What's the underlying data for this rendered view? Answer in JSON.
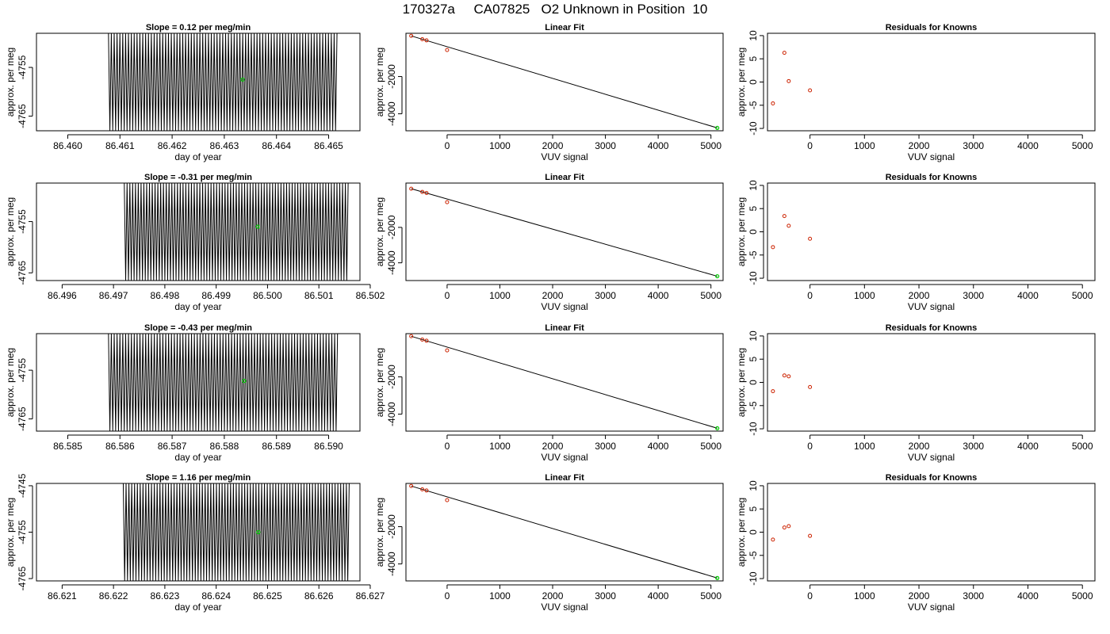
{
  "title": "170327a     CA07825   O2 Unknown in Position  10",
  "colors": {
    "trace": "#000000",
    "fit_line": "#000000",
    "known_points": "#cc2200",
    "unknown_point": "#00cc00",
    "axes": "#000000"
  },
  "chart_data": [
    {
      "type": "line",
      "row": 1,
      "panel": "drift",
      "title": "Slope =  0.12  per meg/min",
      "xlabel": "day of year",
      "ylabel": "approx. per meg",
      "xlim": [
        86.4594,
        86.4656
      ],
      "ylim": [
        -4768,
        -4748
      ],
      "xticks": [
        86.46,
        86.461,
        86.462,
        86.463,
        86.464,
        86.465
      ],
      "xtick_labels": [
        "86.460",
        "86.461",
        "86.462",
        "86.463",
        "86.464",
        "86.465"
      ],
      "yticks": [
        -4755,
        -4765
      ],
      "ytick_labels": [
        "-4755",
        "-4765"
      ],
      "trace": {
        "x_start": 86.46078,
        "x_end": 86.46516,
        "y_low": -4768,
        "y_high": -4748,
        "segment_count": 160
      },
      "marker": {
        "x": 86.46335,
        "y": -4757.5,
        "label": "unknown"
      },
      "slope": 0.12
    },
    {
      "type": "scatter",
      "row": 1,
      "panel": "linear-fit",
      "title": "Linear Fit",
      "xlabel": "VUV signal",
      "ylabel": "approx. per meg",
      "xlim": [
        -780,
        5230
      ],
      "ylim": [
        -4910,
        320
      ],
      "xticks": [
        0,
        1000,
        2000,
        3000,
        4000,
        5000
      ],
      "xtick_labels": [
        "0",
        "1000",
        "2000",
        "3000",
        "4000",
        "5000"
      ],
      "yticks": [
        -2000,
        -4000
      ],
      "ytick_labels": [
        "-2000",
        "-4000"
      ],
      "knowns": {
        "x": [
          -680,
          -470,
          -390,
          0
        ],
        "y": [
          180,
          0,
          -60,
          -580
        ]
      },
      "unknown": {
        "x": 5120,
        "y": -4757
      },
      "fit": {
        "x": [
          -680,
          5120
        ],
        "y": [
          180,
          -4757
        ]
      }
    },
    {
      "type": "scatter",
      "row": 1,
      "panel": "residuals",
      "title": "Residuals for Knowns",
      "xlabel": "VUV signal",
      "ylabel": "approx. per meg",
      "xlim": [
        -780,
        5230
      ],
      "ylim": [
        -10.5,
        10.5
      ],
      "xticks": [
        0,
        1000,
        2000,
        3000,
        4000,
        5000
      ],
      "xtick_labels": [
        "0",
        "1000",
        "2000",
        "3000",
        "4000",
        "5000"
      ],
      "yticks": [
        10,
        5,
        0,
        -5,
        -10
      ],
      "ytick_labels": [
        "10",
        "5",
        "0",
        "-5",
        "-10"
      ],
      "knowns": {
        "x": [
          -680,
          -470,
          -390,
          0
        ],
        "y": [
          -4.6,
          6.3,
          0.2,
          -1.8
        ]
      }
    },
    {
      "type": "line",
      "row": 2,
      "panel": "drift",
      "title": "Slope =  -0.31  per meg/min",
      "xlabel": "day of year",
      "ylabel": "approx. per meg",
      "xlim": [
        86.4955,
        86.5018
      ],
      "ylim": [
        -4766.5,
        -4747.5
      ],
      "xticks": [
        86.496,
        86.497,
        86.498,
        86.499,
        86.5,
        86.501,
        86.502
      ],
      "xtick_labels": [
        "86.496",
        "86.497",
        "86.498",
        "86.499",
        "86.500",
        "86.501",
        "86.502"
      ],
      "yticks": [
        -4755,
        -4765
      ],
      "ytick_labels": [
        "-4755",
        "-4765"
      ],
      "trace": {
        "x_start": 86.49721,
        "x_end": 86.50157,
        "y_low": -4766.5,
        "y_high": -4747.5,
        "segment_count": 160
      },
      "marker": {
        "x": 86.49981,
        "y": -4756,
        "label": "unknown"
      },
      "slope": -0.31
    },
    {
      "type": "scatter",
      "row": 2,
      "panel": "linear-fit",
      "title": "Linear Fit",
      "xlabel": "VUV signal",
      "ylabel": "approx. per meg",
      "xlim": [
        -780,
        5230
      ],
      "ylim": [
        -5000,
        500
      ],
      "xticks": [
        0,
        1000,
        2000,
        3000,
        4000,
        5000
      ],
      "xtick_labels": [
        "0",
        "1000",
        "2000",
        "3000",
        "4000",
        "5000"
      ],
      "yticks": [
        -2000,
        -4000
      ],
      "ytick_labels": [
        "-2000",
        "-4000"
      ],
      "knowns": {
        "x": [
          -680,
          -470,
          -390,
          0
        ],
        "y": [
          180,
          0,
          -60,
          -580
        ]
      },
      "unknown": {
        "x": 5120,
        "y": -4756
      },
      "fit": {
        "x": [
          -680,
          5120
        ],
        "y": [
          180,
          -4756
        ]
      }
    },
    {
      "type": "scatter",
      "row": 2,
      "panel": "residuals",
      "title": "Residuals for Knowns",
      "xlabel": "VUV signal",
      "ylabel": "approx. per meg",
      "xlim": [
        -780,
        5230
      ],
      "ylim": [
        -10.5,
        10.5
      ],
      "xticks": [
        0,
        1000,
        2000,
        3000,
        4000,
        5000
      ],
      "xtick_labels": [
        "0",
        "1000",
        "2000",
        "3000",
        "4000",
        "5000"
      ],
      "yticks": [
        10,
        5,
        0,
        -5,
        -10
      ],
      "ytick_labels": [
        "10",
        "5",
        "0",
        "-5",
        "-10"
      ],
      "knowns": {
        "x": [
          -680,
          -470,
          -390,
          0
        ],
        "y": [
          -3.3,
          3.4,
          1.3,
          -1.5
        ]
      }
    },
    {
      "type": "line",
      "row": 3,
      "panel": "drift",
      "title": "Slope =  -0.43  per meg/min",
      "xlabel": "day of year",
      "ylabel": "approx. per meg",
      "xlim": [
        86.5844,
        86.5906
      ],
      "ylim": [
        -4767.5,
        -4747.5
      ],
      "xticks": [
        86.585,
        86.586,
        86.587,
        86.588,
        86.589,
        86.59
      ],
      "xtick_labels": [
        "86.585",
        "86.586",
        "86.587",
        "86.588",
        "86.589",
        "86.590"
      ],
      "yticks": [
        -4755,
        -4765
      ],
      "ytick_labels": [
        "-4755",
        "-4765"
      ],
      "trace": {
        "x_start": 86.58578,
        "x_end": 86.59017,
        "y_low": -4767.5,
        "y_high": -4747.5,
        "segment_count": 160
      },
      "marker": {
        "x": 86.58838,
        "y": -4757.2,
        "label": "unknown"
      },
      "slope": -0.43
    },
    {
      "type": "scatter",
      "row": 3,
      "panel": "linear-fit",
      "title": "Linear Fit",
      "xlabel": "VUV signal",
      "ylabel": "approx. per meg",
      "xlim": [
        -780,
        5230
      ],
      "ylim": [
        -4910,
        320
      ],
      "xticks": [
        0,
        1000,
        2000,
        3000,
        4000,
        5000
      ],
      "xtick_labels": [
        "0",
        "1000",
        "2000",
        "3000",
        "4000",
        "5000"
      ],
      "yticks": [
        -2000,
        -4000
      ],
      "ytick_labels": [
        "-2000",
        "-4000"
      ],
      "knowns": {
        "x": [
          -680,
          -470,
          -390,
          0
        ],
        "y": [
          180,
          0,
          -60,
          -580
        ]
      },
      "unknown": {
        "x": 5120,
        "y": -4757
      },
      "fit": {
        "x": [
          -680,
          5120
        ],
        "y": [
          180,
          -4757
        ]
      }
    },
    {
      "type": "scatter",
      "row": 3,
      "panel": "residuals",
      "title": "Residuals for Knowns",
      "xlabel": "VUV signal",
      "ylabel": "approx. per meg",
      "xlim": [
        -780,
        5230
      ],
      "ylim": [
        -10.5,
        10.5
      ],
      "xticks": [
        0,
        1000,
        2000,
        3000,
        4000,
        5000
      ],
      "xtick_labels": [
        "0",
        "1000",
        "2000",
        "3000",
        "4000",
        "5000"
      ],
      "yticks": [
        10,
        5,
        0,
        -5,
        -10
      ],
      "ytick_labels": [
        "10",
        "5",
        "0",
        "-5",
        "-10"
      ],
      "knowns": {
        "x": [
          -680,
          -470,
          -390,
          0
        ],
        "y": [
          -1.9,
          1.5,
          1.3,
          -1.0
        ]
      }
    },
    {
      "type": "line",
      "row": 4,
      "panel": "drift",
      "title": "Slope =  1.16  per meg/min",
      "xlabel": "day of year",
      "ylabel": "approx. per meg",
      "xlim": [
        86.6205,
        86.6268
      ],
      "ylim": [
        -4765.5,
        -4744.5
      ],
      "xticks": [
        86.621,
        86.622,
        86.623,
        86.624,
        86.625,
        86.626,
        86.627
      ],
      "xtick_labels": [
        "86.621",
        "86.622",
        "86.623",
        "86.624",
        "86.625",
        "86.626",
        "86.627"
      ],
      "yticks": [
        -4745,
        -4755,
        -4765
      ],
      "ytick_labels": [
        "-4745",
        "-4755",
        "-4765"
      ],
      "trace": {
        "x_start": 86.62219,
        "x_end": 86.62659,
        "y_low": -4765.5,
        "y_high": -4744.5,
        "segment_count": 160
      },
      "marker": {
        "x": 86.62482,
        "y": -4755,
        "label": "unknown"
      },
      "slope": 1.16
    },
    {
      "type": "scatter",
      "row": 4,
      "panel": "linear-fit",
      "title": "Linear Fit",
      "xlabel": "VUV signal",
      "ylabel": "approx. per meg",
      "xlim": [
        -780,
        5230
      ],
      "ylim": [
        -4910,
        320
      ],
      "xticks": [
        0,
        1000,
        2000,
        3000,
        4000,
        5000
      ],
      "xtick_labels": [
        "0",
        "1000",
        "2000",
        "3000",
        "4000",
        "5000"
      ],
      "yticks": [
        -2000,
        -4000
      ],
      "ytick_labels": [
        "-2000",
        "-4000"
      ],
      "knowns": {
        "x": [
          -680,
          -470,
          -390,
          0
        ],
        "y": [
          180,
          0,
          -60,
          -580
        ]
      },
      "unknown": {
        "x": 5120,
        "y": -4755
      },
      "fit": {
        "x": [
          -680,
          5120
        ],
        "y": [
          180,
          -4755
        ]
      }
    },
    {
      "type": "scatter",
      "row": 4,
      "panel": "residuals",
      "title": "Residuals for Knowns",
      "xlabel": "VUV signal",
      "ylabel": "approx. per meg",
      "xlim": [
        -780,
        5230
      ],
      "ylim": [
        -10.5,
        10.5
      ],
      "xticks": [
        0,
        1000,
        2000,
        3000,
        4000,
        5000
      ],
      "xtick_labels": [
        "0",
        "1000",
        "2000",
        "3000",
        "4000",
        "5000"
      ],
      "yticks": [
        10,
        5,
        0,
        -5,
        -10
      ],
      "ytick_labels": [
        "10",
        "5",
        "0",
        "-5",
        "-10"
      ],
      "knowns": {
        "x": [
          -680,
          -470,
          -390,
          0
        ],
        "y": [
          -1.6,
          1.0,
          1.3,
          -0.8
        ]
      }
    }
  ]
}
